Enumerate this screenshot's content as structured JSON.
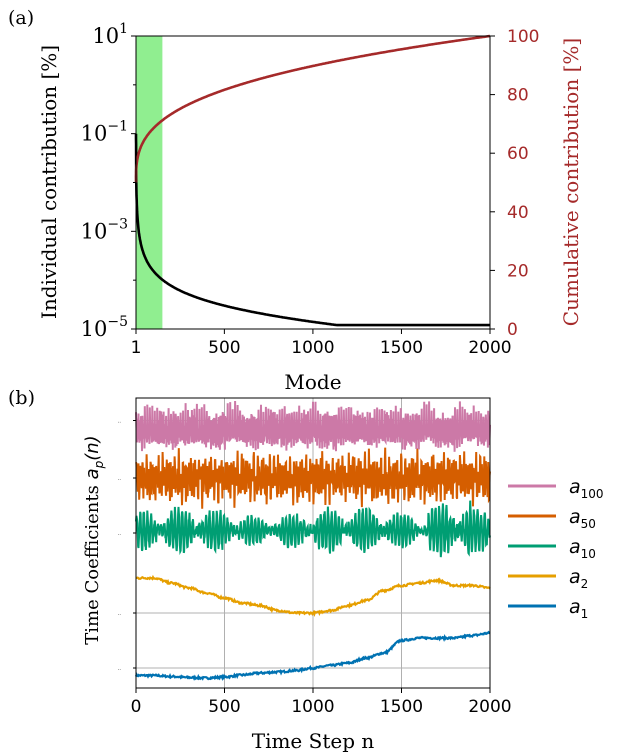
{
  "panel_a": {
    "label": "(a)",
    "ylabel_left": "Individual contribution [%]",
    "ylabel_right": "Cumulative contribution [%]",
    "xlabel": "Mode",
    "left_ticks": [
      {
        "base": "10",
        "exp": "1"
      },
      {
        "base": "10",
        "exp": "−1"
      },
      {
        "base": "10",
        "exp": "−3"
      },
      {
        "base": "10",
        "exp": "−5"
      }
    ],
    "right_ticks": [
      "100",
      "80",
      "60",
      "40",
      "20",
      "0"
    ],
    "x_ticks": [
      "1",
      "500",
      "1000",
      "1500",
      "2000"
    ]
  },
  "panel_b": {
    "label": "(b)",
    "ylabel_prefix": "Time Coefficients ",
    "ylabel_symbol": "a",
    "ylabel_sub": "p",
    "ylabel_suffix": "(n)",
    "xlabel": "Time Step n",
    "x_ticks": [
      "0",
      "500",
      "1000",
      "1500",
      "2000"
    ],
    "legend": [
      {
        "symbol": "a",
        "sub": "100"
      },
      {
        "symbol": "a",
        "sub": "50"
      },
      {
        "symbol": "a",
        "sub": "10"
      },
      {
        "symbol": "a",
        "sub": "2"
      },
      {
        "symbol": "a",
        "sub": "1"
      }
    ]
  },
  "colors": {
    "individual": "#000000",
    "cumulative": "#a52a2a",
    "highlight": "#90ee90",
    "a100": "#cc79a7",
    "a50": "#d55e00",
    "a10": "#009e73",
    "a2": "#e69f00",
    "a1": "#0072b2",
    "grid": "#b0b0b0"
  },
  "chart_data": [
    {
      "type": "line",
      "x": [
        1,
        50,
        100,
        150,
        300,
        500,
        750,
        1000,
        1250,
        1500,
        1750,
        1900,
        2000
      ],
      "xlim": [
        1,
        2000
      ],
      "xlabel": "Mode",
      "ylabel": "Individual contribution [%]",
      "y_scale": "log",
      "ylim": [
        1e-05,
        10
      ],
      "highlight_x_range": [
        1,
        150
      ],
      "series": [
        {
          "name": "Individual contribution",
          "axis": "left",
          "values": [
            0.1,
            0.006,
            0.0025,
            0.0015,
            0.0006,
            0.00025,
            0.00012,
            7e-05,
            5e-05,
            3.5e-05,
            2.5e-05,
            1.8e-05,
            1.2e-05
          ]
        },
        {
          "name": "Cumulative contribution",
          "axis": "right",
          "ylim": [
            0,
            100
          ],
          "values": [
            50,
            68,
            74,
            79,
            86,
            91,
            94.5,
            96.5,
            97.8,
            98.7,
            99.4,
            99.8,
            100
          ]
        }
      ]
    },
    {
      "type": "line",
      "xlim": [
        0,
        2000
      ],
      "xlabel": "Time Step n",
      "ylabel": "Time Coefficients a_p(n)",
      "x": [
        0,
        100,
        200,
        300,
        400,
        500,
        600,
        700,
        800,
        900,
        1000,
        1100,
        1200,
        1300,
        1400,
        1500,
        1600,
        1700,
        1800,
        1900,
        2000
      ],
      "series": [
        {
          "name": "a_1",
          "values": [
            0.05,
            0.05,
            0.03,
            0.01,
            0.0,
            0.02,
            0.06,
            0.1,
            0.12,
            0.15,
            0.2,
            0.25,
            0.3,
            0.4,
            0.5,
            0.75,
            0.8,
            0.8,
            0.8,
            0.85,
            0.9
          ]
        },
        {
          "name": "a_2",
          "values": [
            2.0,
            2.0,
            1.9,
            1.8,
            1.7,
            1.6,
            1.5,
            1.45,
            1.35,
            1.3,
            1.3,
            1.35,
            1.45,
            1.55,
            1.75,
            1.85,
            1.9,
            1.95,
            1.85,
            1.85,
            1.8
          ]
        },
        {
          "name": "a_10",
          "mean": 2.95,
          "amplitude": 0.5
        },
        {
          "name": "a_50",
          "mean": 4.0,
          "amplitude": 0.6
        },
        {
          "name": "a_100",
          "mean": 4.95,
          "amplitude": 0.6
        }
      ]
    }
  ]
}
